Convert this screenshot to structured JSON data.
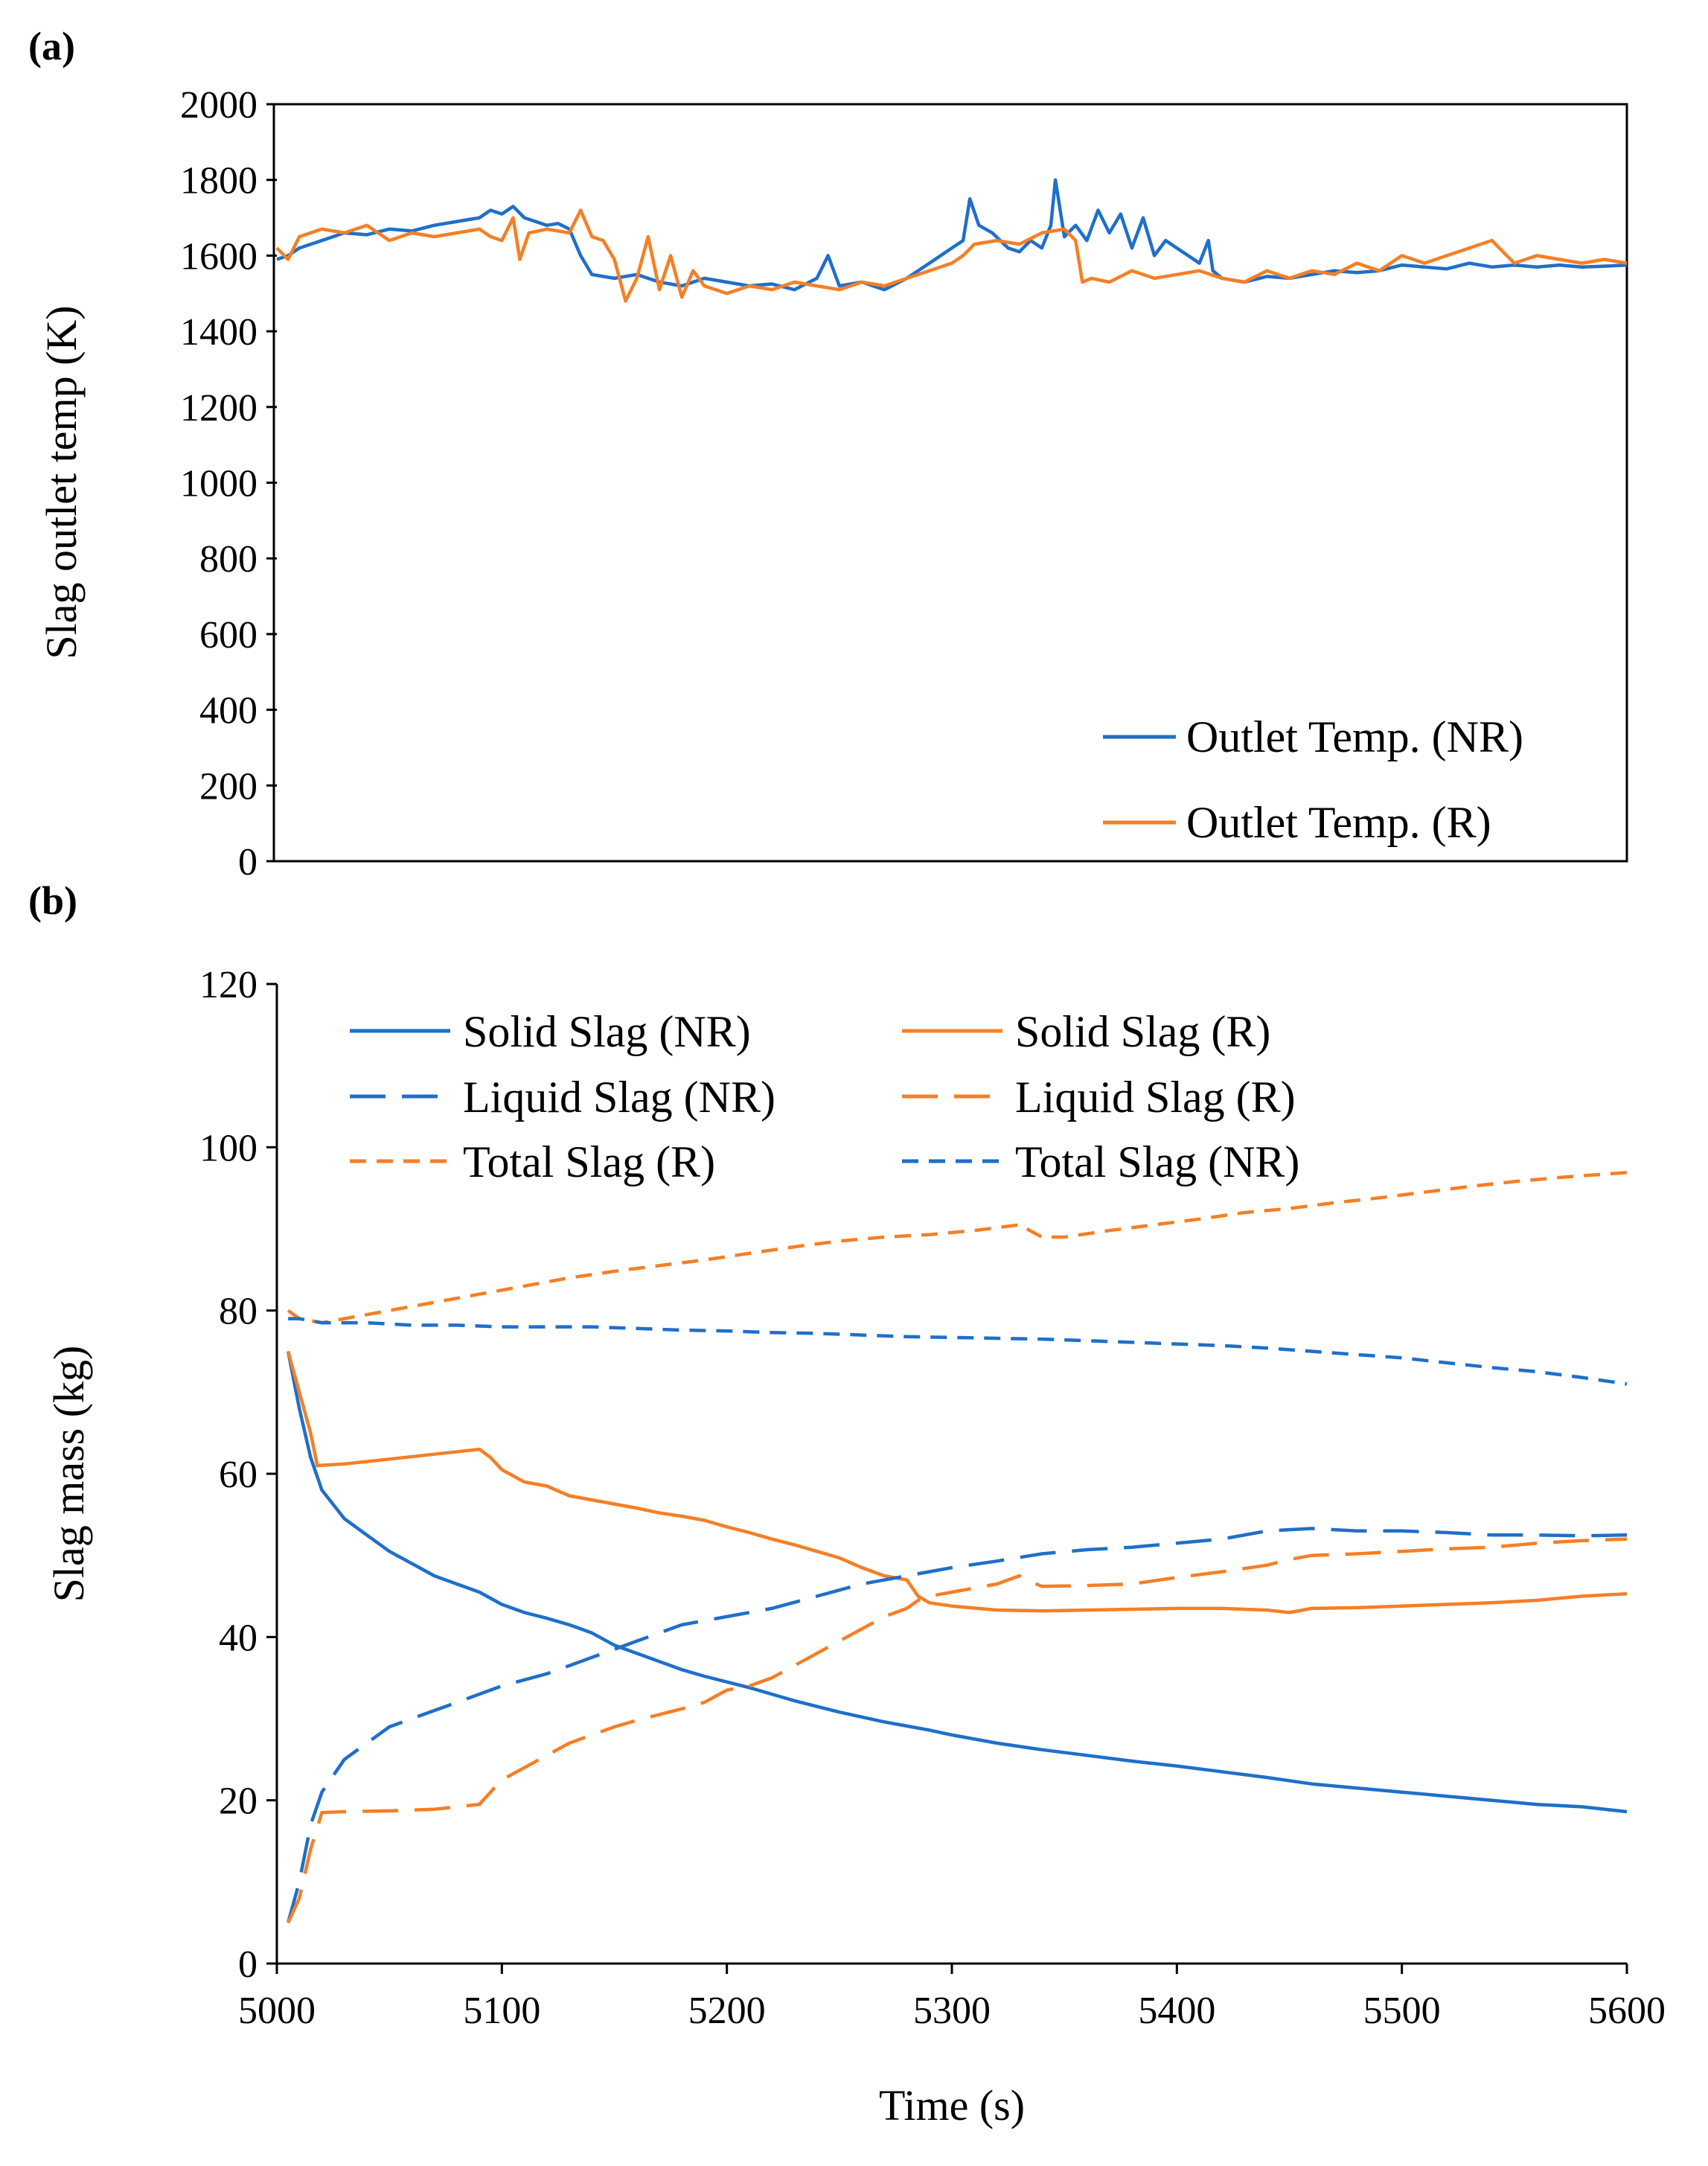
{
  "colors": {
    "nr": "#1f6fc9",
    "r": "#f57f25",
    "axis": "#000000"
  },
  "chart_data": [
    {
      "panel_label": "(a)",
      "type": "line",
      "ylabel": "Slag outlet temp (K)",
      "xlabel": "",
      "xlim": [
        5000,
        5600
      ],
      "ylim": [
        0,
        2000
      ],
      "yticks": [
        "0",
        "200",
        "400",
        "600",
        "800",
        "1000",
        "1200",
        "1400",
        "1600",
        "1800",
        "2000"
      ],
      "grid": false,
      "legend_position": "bottom-right",
      "series": [
        {
          "name": "Outlet Temp. (NR)",
          "color_key": "nr",
          "dash": "solid",
          "x": [
            5000,
            5005,
            5010,
            5020,
            5030,
            5040,
            5050,
            5060,
            5070,
            5080,
            5090,
            5095,
            5100,
            5105,
            5110,
            5115,
            5120,
            5125,
            5130,
            5135,
            5140,
            5150,
            5160,
            5170,
            5180,
            5190,
            5200,
            5210,
            5220,
            5230,
            5240,
            5245,
            5250,
            5260,
            5270,
            5280,
            5290,
            5300,
            5305,
            5308,
            5312,
            5318,
            5325,
            5330,
            5335,
            5340,
            5344,
            5346,
            5350,
            5355,
            5360,
            5365,
            5370,
            5375,
            5380,
            5385,
            5390,
            5395,
            5400,
            5405,
            5410,
            5414,
            5416,
            5420,
            5430,
            5440,
            5450,
            5460,
            5470,
            5480,
            5490,
            5500,
            5510,
            5520,
            5530,
            5540,
            5550,
            5560,
            5570,
            5580,
            5590,
            5600
          ],
          "y": [
            1590,
            1600,
            1620,
            1640,
            1660,
            1655,
            1670,
            1665,
            1680,
            1690,
            1700,
            1720,
            1710,
            1730,
            1700,
            1690,
            1680,
            1685,
            1670,
            1600,
            1550,
            1540,
            1550,
            1530,
            1520,
            1540,
            1530,
            1520,
            1525,
            1510,
            1540,
            1600,
            1520,
            1530,
            1510,
            1540,
            1580,
            1620,
            1640,
            1750,
            1680,
            1660,
            1620,
            1610,
            1640,
            1620,
            1680,
            1800,
            1650,
            1680,
            1640,
            1720,
            1660,
            1710,
            1620,
            1700,
            1600,
            1640,
            1620,
            1600,
            1580,
            1640,
            1560,
            1540,
            1530,
            1545,
            1540,
            1550,
            1560,
            1555,
            1560,
            1575,
            1570,
            1565,
            1580,
            1570,
            1575,
            1570,
            1575,
            1570,
            1572,
            1575
          ]
        },
        {
          "name": "Outlet Temp. (R)",
          "color_key": "r",
          "dash": "solid",
          "x": [
            5000,
            5005,
            5010,
            5015,
            5020,
            5030,
            5040,
            5050,
            5060,
            5070,
            5080,
            5090,
            5095,
            5100,
            5105,
            5108,
            5112,
            5120,
            5130,
            5135,
            5140,
            5145,
            5150,
            5155,
            5160,
            5165,
            5170,
            5175,
            5180,
            5185,
            5190,
            5200,
            5210,
            5220,
            5230,
            5240,
            5250,
            5260,
            5270,
            5280,
            5290,
            5300,
            5305,
            5310,
            5320,
            5330,
            5340,
            5350,
            5355,
            5358,
            5362,
            5370,
            5380,
            5390,
            5400,
            5410,
            5420,
            5430,
            5440,
            5450,
            5460,
            5470,
            5480,
            5490,
            5500,
            5510,
            5520,
            5530,
            5540,
            5550,
            5560,
            5570,
            5580,
            5590,
            5600
          ],
          "y": [
            1620,
            1590,
            1650,
            1660,
            1670,
            1660,
            1680,
            1640,
            1660,
            1650,
            1660,
            1670,
            1650,
            1640,
            1700,
            1590,
            1660,
            1670,
            1660,
            1720,
            1650,
            1640,
            1590,
            1480,
            1540,
            1650,
            1510,
            1600,
            1490,
            1560,
            1520,
            1500,
            1520,
            1510,
            1530,
            1520,
            1510,
            1530,
            1520,
            1540,
            1560,
            1580,
            1600,
            1630,
            1640,
            1630,
            1660,
            1670,
            1640,
            1530,
            1540,
            1530,
            1560,
            1540,
            1550,
            1560,
            1540,
            1530,
            1560,
            1540,
            1560,
            1550,
            1580,
            1560,
            1600,
            1580,
            1600,
            1620,
            1640,
            1580,
            1600,
            1590,
            1580,
            1590,
            1580
          ]
        }
      ]
    },
    {
      "panel_label": "(b)",
      "type": "line",
      "ylabel": "Slag mass (kg)",
      "xlabel": "Time (s)",
      "xlim": [
        5000,
        5600
      ],
      "ylim": [
        0,
        120
      ],
      "xticks": [
        "5000",
        "5100",
        "5200",
        "5300",
        "5400",
        "5500",
        "5600"
      ],
      "yticks": [
        "0",
        "20",
        "40",
        "60",
        "80",
        "100",
        "120"
      ],
      "grid": false,
      "legend_position": "top",
      "series": [
        {
          "name": "Solid Slag (NR)",
          "color_key": "nr",
          "dash": "solid",
          "x": [
            5005,
            5010,
            5015,
            5020,
            5030,
            5040,
            5050,
            5060,
            5070,
            5080,
            5090,
            5100,
            5110,
            5120,
            5130,
            5140,
            5150,
            5160,
            5170,
            5180,
            5190,
            5200,
            5210,
            5220,
            5230,
            5240,
            5250,
            5260,
            5270,
            5280,
            5290,
            5300,
            5320,
            5340,
            5360,
            5380,
            5400,
            5420,
            5440,
            5460,
            5480,
            5500,
            5520,
            5540,
            5560,
            5580,
            5600
          ],
          "y": [
            75,
            68,
            62,
            58,
            54.5,
            52.5,
            50.5,
            49,
            47.5,
            46.5,
            45.5,
            44,
            43,
            42.3,
            41.5,
            40.5,
            39,
            38,
            37,
            36,
            35.2,
            34.5,
            33.8,
            33,
            32.2,
            31.5,
            30.8,
            30.2,
            29.6,
            29.1,
            28.6,
            28,
            27,
            26.2,
            25.5,
            24.8,
            24.2,
            23.5,
            22.8,
            22,
            21.5,
            21,
            20.5,
            20,
            19.5,
            19.2,
            18.6
          ]
        },
        {
          "name": "Solid Slag (R)",
          "color_key": "r",
          "dash": "solid",
          "x": [
            5005,
            5010,
            5015,
            5018,
            5030,
            5050,
            5070,
            5090,
            5095,
            5100,
            5110,
            5120,
            5130,
            5140,
            5150,
            5160,
            5170,
            5180,
            5190,
            5200,
            5210,
            5220,
            5230,
            5240,
            5250,
            5260,
            5270,
            5280,
            5285,
            5290,
            5300,
            5320,
            5340,
            5360,
            5380,
            5400,
            5420,
            5440,
            5450,
            5460,
            5480,
            5500,
            5520,
            5540,
            5560,
            5580,
            5600
          ],
          "y": [
            75,
            70,
            65,
            61,
            61.2,
            61.8,
            62.4,
            63,
            62,
            60.5,
            59,
            58.5,
            57.3,
            56.8,
            56.3,
            55.8,
            55.2,
            54.8,
            54.3,
            53.5,
            52.8,
            52,
            51.3,
            50.5,
            49.7,
            48.5,
            47.5,
            47,
            45,
            44.2,
            43.8,
            43.3,
            43.2,
            43.3,
            43.4,
            43.5,
            43.5,
            43.3,
            43,
            43.5,
            43.6,
            43.8,
            44,
            44.2,
            44.5,
            45,
            45.3
          ]
        },
        {
          "name": "Liquid Slag (NR)",
          "color_key": "nr",
          "dash": "long",
          "x": [
            5005,
            5010,
            5015,
            5020,
            5030,
            5040,
            5050,
            5060,
            5080,
            5100,
            5120,
            5140,
            5160,
            5180,
            5200,
            5220,
            5240,
            5260,
            5280,
            5300,
            5320,
            5340,
            5360,
            5380,
            5400,
            5420,
            5440,
            5460,
            5480,
            5500,
            5520,
            5540,
            5560,
            5580,
            5600
          ],
          "y": [
            5,
            10,
            17,
            21,
            25,
            27,
            29,
            30,
            32,
            34,
            35.5,
            37.5,
            39.5,
            41.5,
            42.5,
            43.5,
            45,
            46.5,
            47.5,
            48.5,
            49.3,
            50.2,
            50.7,
            51,
            51.5,
            52,
            53,
            53.3,
            53,
            53,
            52.8,
            52.5,
            52.5,
            52.4,
            52.5
          ]
        },
        {
          "name": "Liquid Slag (R)",
          "color_key": "r",
          "dash": "long",
          "x": [
            5005,
            5010,
            5015,
            5020,
            5030,
            5050,
            5070,
            5090,
            5095,
            5100,
            5110,
            5120,
            5130,
            5140,
            5150,
            5160,
            5170,
            5180,
            5190,
            5200,
            5210,
            5220,
            5230,
            5240,
            5250,
            5260,
            5270,
            5280,
            5285,
            5290,
            5300,
            5320,
            5330,
            5335,
            5340,
            5360,
            5380,
            5400,
            5420,
            5440,
            5450,
            5460,
            5480,
            5500,
            5520,
            5540,
            5560,
            5580,
            5600
          ],
          "y": [
            5,
            8,
            14,
            18.5,
            18.6,
            18.7,
            18.9,
            19.5,
            21,
            22.5,
            24,
            25.5,
            27,
            28,
            29,
            29.8,
            30.5,
            31.2,
            32,
            33.5,
            34,
            35,
            36.5,
            38,
            39.5,
            41,
            42.5,
            43.5,
            44.5,
            45,
            45.5,
            46.5,
            47.5,
            46.8,
            46.2,
            46.3,
            46.5,
            47.3,
            48,
            48.8,
            49.5,
            50,
            50.2,
            50.5,
            50.8,
            51,
            51.5,
            51.8,
            52
          ]
        },
        {
          "name": "Total Slag (R)",
          "color_key": "r",
          "dash": "short",
          "x": [
            5005,
            5010,
            5020,
            5030,
            5050,
            5070,
            5090,
            5110,
            5130,
            5150,
            5170,
            5190,
            5210,
            5230,
            5250,
            5270,
            5290,
            5310,
            5330,
            5340,
            5350,
            5370,
            5390,
            5410,
            5430,
            5450,
            5470,
            5490,
            5510,
            5530,
            5550,
            5570,
            5600
          ],
          "y": [
            80,
            79,
            78.5,
            79,
            80,
            81,
            82,
            83,
            84,
            84.8,
            85.5,
            86.2,
            87,
            87.8,
            88.5,
            89,
            89.3,
            89.8,
            90.5,
            89,
            89,
            89.8,
            90.5,
            91.2,
            92,
            92.5,
            93.2,
            93.8,
            94.5,
            95.2,
            95.8,
            96.3,
            96.9
          ]
        },
        {
          "name": "Total Slag (NR)",
          "color_key": "nr",
          "dash": "short",
          "x": [
            5005,
            5010,
            5020,
            5040,
            5060,
            5080,
            5100,
            5120,
            5140,
            5160,
            5180,
            5200,
            5220,
            5240,
            5260,
            5280,
            5300,
            5320,
            5340,
            5360,
            5380,
            5400,
            5420,
            5440,
            5460,
            5480,
            5500,
            5520,
            5540,
            5560,
            5580,
            5600
          ],
          "y": [
            79,
            79,
            78.5,
            78.5,
            78.2,
            78.2,
            78,
            78,
            78,
            77.8,
            77.6,
            77.5,
            77.3,
            77.2,
            77,
            76.8,
            76.7,
            76.6,
            76.5,
            76.3,
            76.1,
            75.9,
            75.7,
            75.4,
            75,
            74.6,
            74.2,
            73.6,
            73,
            72.5,
            71.8,
            71
          ]
        }
      ]
    }
  ]
}
